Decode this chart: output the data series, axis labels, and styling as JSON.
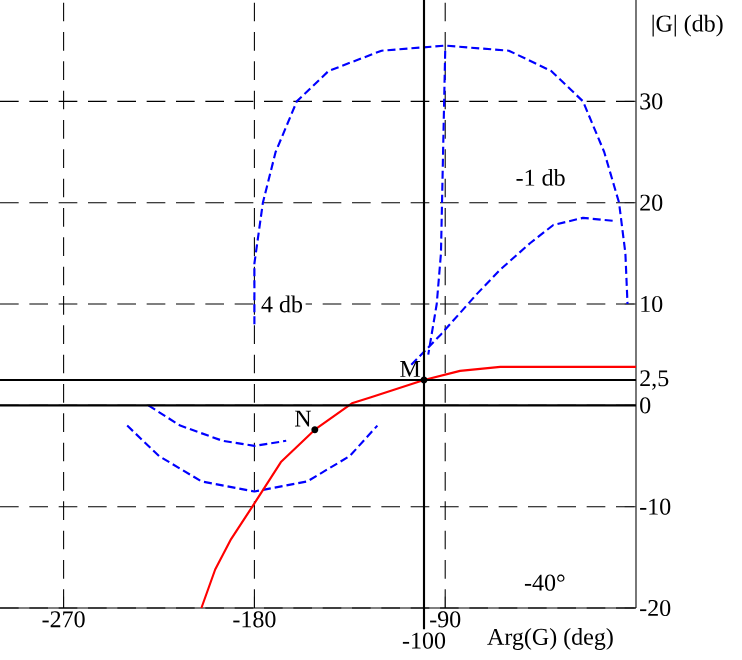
{
  "chart_data": {
    "type": "line",
    "xlabel": "Arg(G) (deg)",
    "ylabel": "|G| (db)",
    "xlim": [
      -300,
      0
    ],
    "ylim": [
      -20,
      40
    ],
    "xticks": [
      -270,
      -180,
      -90
    ],
    "yticks": [
      -20,
      -10,
      0,
      10,
      20,
      30
    ],
    "grid": true,
    "marker": "none",
    "series": [
      {
        "color": "#0000ff",
        "line_style": "dashed",
        "x": [
          -180,
          -180,
          -176,
          -170,
          -160,
          -145,
          -120,
          -90,
          -60,
          -40,
          -25,
          -15,
          -8,
          -5,
          -4
        ],
        "values": [
          8,
          14,
          20,
          25,
          30,
          33,
          35,
          35.5,
          35,
          33,
          30,
          25,
          20,
          15,
          10
        ]
      },
      {
        "color": "#0000ff",
        "line_style": "dashed",
        "x": [
          -106,
          -92,
          -75,
          -64,
          -50,
          -39,
          -25,
          -10
        ],
        "values": [
          4,
          7,
          11,
          13.4,
          16,
          17.8,
          18.5,
          18.2
        ]
      },
      {
        "color": "#0000ff",
        "line_style": "dashed",
        "x": [
          -90,
          -91,
          -92,
          -94,
          -98
        ],
        "values": [
          35,
          25,
          15,
          10,
          5
        ]
      },
      {
        "color": "#0000ff",
        "line_style": "dashed",
        "x": [
          -240,
          -225,
          -205,
          -180,
          -155,
          -135,
          -122
        ],
        "values": [
          -2,
          -5,
          -7.5,
          -8.5,
          -7.5,
          -5,
          -2
        ]
      },
      {
        "color": "#0000ff",
        "line_style": "dashed",
        "x": [
          -230,
          -215,
          -195,
          -180,
          -165
        ],
        "values": [
          0,
          -2,
          -3.5,
          -4,
          -3.5
        ]
      },
      {
        "color": "#ff0000",
        "line_style": "solid",
        "x": [
          0,
          -64,
          -83,
          -100,
          -125,
          -134,
          -151.5,
          -167.5,
          -181.6,
          -191,
          -198.5,
          -205
        ],
        "values": [
          3.8,
          3.8,
          3.4,
          2.5,
          0.8,
          0.2,
          -2.4,
          -5.6,
          -10.2,
          -13.2,
          -16.2,
          -20
        ]
      }
    ],
    "ref_lines": [
      {
        "axis": "y",
        "value": 0
      },
      {
        "axis": "y",
        "value": 2.5,
        "label": "2,5"
      },
      {
        "axis": "x",
        "value": -100,
        "label": "-100"
      }
    ],
    "annotations": [
      {
        "text": "M",
        "x": -100,
        "y": 2.5
      },
      {
        "text": "N",
        "x": -151.5,
        "y": -2.4
      },
      "-1 db",
      "4 db",
      "-40°"
    ]
  }
}
